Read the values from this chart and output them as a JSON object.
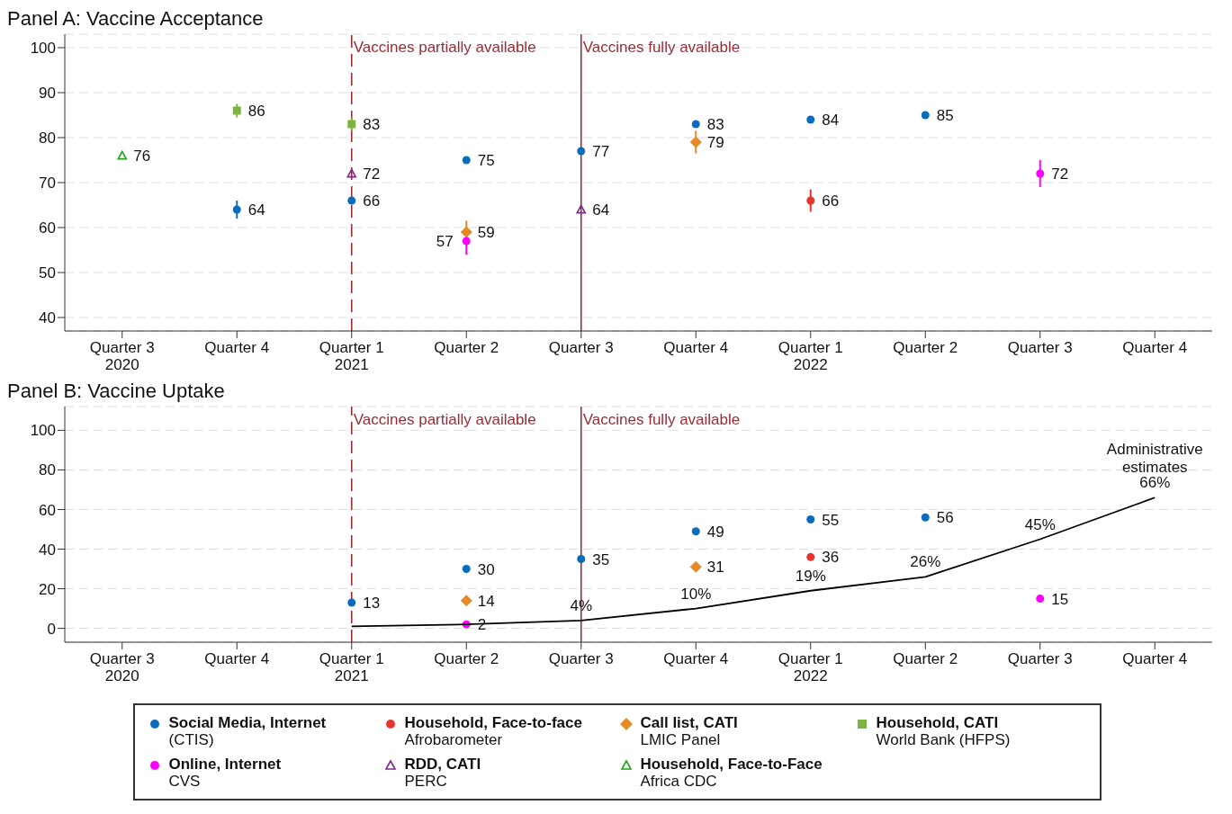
{
  "chart_data": [
    {
      "type": "scatter",
      "title": "Panel A: Vaccine Acceptance",
      "categories": [
        "Quarter 3\n2020",
        "Quarter 4",
        "Quarter 1\n2021",
        "Quarter 2",
        "Quarter 3",
        "Quarter 4",
        "Quarter 1\n2022",
        "Quarter 2",
        "Quarter 3",
        "Quarter 4"
      ],
      "ylim": [
        37,
        103
      ],
      "yticks": [
        40,
        50,
        60,
        70,
        80,
        90,
        100
      ],
      "grid": "y",
      "data_labels": true,
      "legend": false,
      "ref_lines": [
        {
          "axis": "x",
          "value": "Quarter 1\n2021",
          "label": "Vaccines partially available",
          "color": "#9b2c34",
          "line_style": "dashed"
        },
        {
          "axis": "x",
          "value": "Quarter 3",
          "label": "Vaccines fully available",
          "color": "#9b2c34",
          "line_style": "solid"
        }
      ],
      "series": [
        {
          "color": "#0a6cbf",
          "marker": "circle",
          "values": [
            null,
            64,
            66,
            75,
            77,
            83,
            84,
            85,
            null,
            null
          ],
          "errors": [
            null,
            2,
            null,
            null,
            null,
            null,
            null,
            null,
            null,
            null
          ]
        },
        {
          "color": "#e8352d",
          "marker": "circle",
          "values": [
            null,
            null,
            null,
            null,
            null,
            null,
            66,
            null,
            null,
            null
          ],
          "errors": [
            null,
            null,
            null,
            null,
            null,
            null,
            2.5,
            null,
            null,
            null
          ]
        },
        {
          "color": "#e58a24",
          "marker": "diamond",
          "values": [
            null,
            null,
            null,
            59,
            null,
            79,
            null,
            null,
            null,
            null
          ],
          "errors": [
            null,
            null,
            null,
            2.5,
            null,
            2.5,
            null,
            null,
            null,
            null
          ]
        },
        {
          "color": "#7cb342",
          "marker": "square",
          "values": [
            null,
            86,
            83,
            null,
            null,
            null,
            null,
            null,
            null,
            null
          ],
          "errors": [
            null,
            1.5,
            1.5,
            null,
            null,
            null,
            null,
            null,
            null,
            null
          ]
        },
        {
          "color": "#ff00ff",
          "marker": "circle",
          "values": [
            null,
            null,
            null,
            57,
            null,
            null,
            null,
            null,
            72,
            null
          ],
          "errors": [
            null,
            null,
            null,
            3,
            null,
            null,
            null,
            null,
            3,
            null
          ]
        },
        {
          "color": "#7d2a8a",
          "marker": "triangle",
          "values": [
            null,
            null,
            72,
            null,
            64,
            null,
            null,
            null,
            null,
            null
          ]
        },
        {
          "color": "#19a619",
          "marker": "triangle",
          "values": [
            76,
            null,
            null,
            null,
            null,
            null,
            null,
            null,
            null,
            null
          ]
        }
      ]
    },
    {
      "type": "scatter",
      "title": "Panel B: Vaccine Uptake",
      "categories": [
        "Quarter 3\n2020",
        "Quarter 4",
        "Quarter 1\n2021",
        "Quarter 2",
        "Quarter 3",
        "Quarter 4",
        "Quarter 1\n2022",
        "Quarter 2",
        "Quarter 3",
        "Quarter 4"
      ],
      "ylim": [
        -7,
        112
      ],
      "yticks": [
        0,
        20,
        40,
        60,
        80,
        100
      ],
      "grid": "y",
      "data_labels": true,
      "legend": "bottom",
      "ref_lines": [
        {
          "axis": "x",
          "value": "Quarter 1\n2021",
          "label": "Vaccines partially available",
          "color": "#9b2c34",
          "line_style": "dashed"
        },
        {
          "axis": "x",
          "value": "Quarter 3",
          "label": "Vaccines fully available",
          "color": "#9b2c34",
          "line_style": "solid"
        }
      ],
      "series": [
        {
          "name": "Social Media, Internet\n(CTIS)",
          "color": "#0a6cbf",
          "marker": "circle",
          "values": [
            null,
            null,
            13,
            30,
            35,
            49,
            55,
            56,
            null,
            null
          ]
        },
        {
          "name": "Household, Face-to-face\nAfrobarometer",
          "color": "#e8352d",
          "marker": "circle",
          "values": [
            null,
            null,
            null,
            null,
            null,
            null,
            36,
            null,
            null,
            null
          ]
        },
        {
          "name": "Call list, CATI\nLMIC Panel",
          "color": "#e58a24",
          "marker": "diamond",
          "values": [
            null,
            null,
            null,
            14,
            null,
            31,
            null,
            null,
            null,
            null
          ]
        },
        {
          "name": "Household, CATI\nWorld Bank (HFPS)",
          "color": "#7cb342",
          "marker": "square",
          "values": [
            null,
            null,
            null,
            null,
            null,
            null,
            null,
            null,
            null,
            null
          ]
        },
        {
          "name": "Online, Internet\nCVS",
          "color": "#ff00ff",
          "marker": "circle",
          "values": [
            null,
            null,
            null,
            2,
            null,
            null,
            null,
            null,
            15,
            null
          ]
        },
        {
          "name": "RDD, CATI\nPERC",
          "color": "#7d2a8a",
          "marker": "triangle",
          "values": [
            null,
            null,
            null,
            null,
            null,
            null,
            null,
            null,
            null,
            null
          ]
        },
        {
          "name": "Household, Face-to-Face\nAfrica CDC",
          "color": "#19a619",
          "marker": "triangle",
          "values": [
            null,
            null,
            null,
            null,
            null,
            null,
            null,
            null,
            null,
            null
          ]
        },
        {
          "name": "Administrative estimates",
          "type": "line",
          "color": "#000000",
          "marker": "none",
          "line_style": "solid",
          "values": [
            null,
            null,
            1,
            2,
            4,
            10,
            19,
            26,
            45,
            66
          ],
          "value_labels": [
            null,
            null,
            null,
            null,
            "4%",
            "10%",
            "19%",
            "26%",
            "45%",
            "66%"
          ]
        }
      ]
    }
  ]
}
